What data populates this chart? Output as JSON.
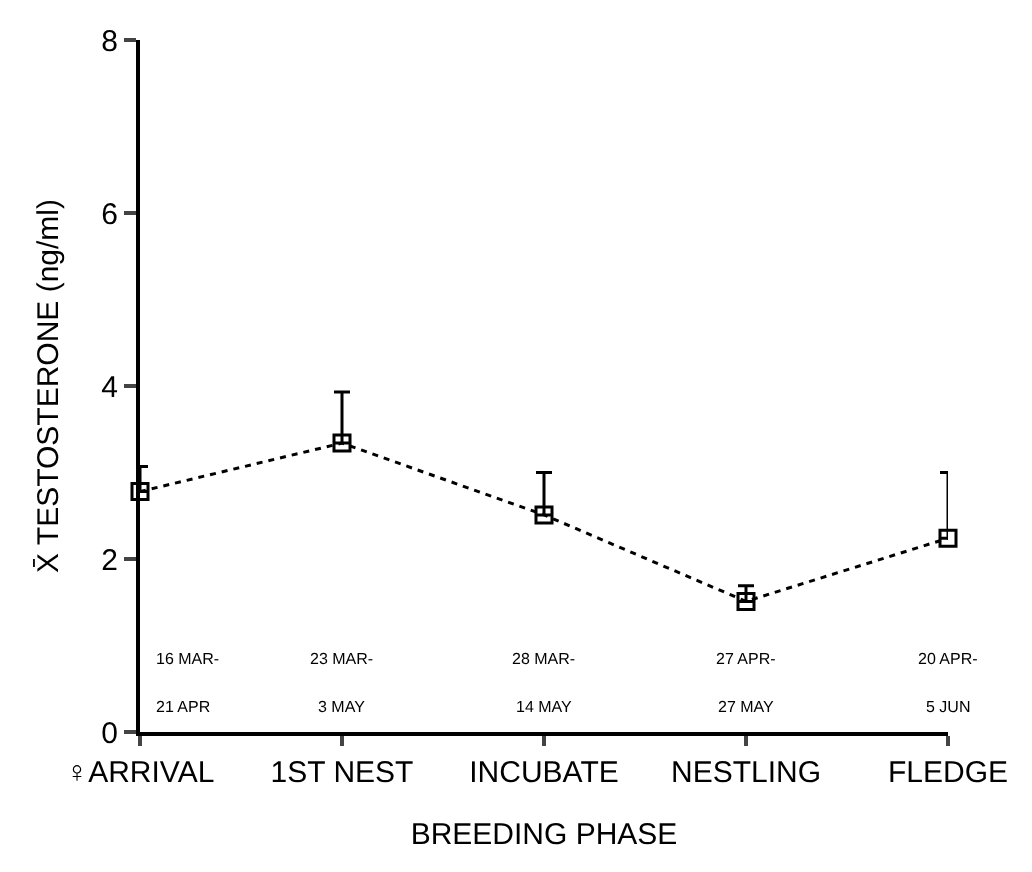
{
  "chart_data": {
    "type": "line",
    "xlabel": "BREEDING PHASE",
    "ylabel": "X̄ TESTOSTERONE (ng/ml)",
    "categories": [
      "♀ARRIVAL",
      "1ST NEST",
      "INCUBATE",
      "NESTLING",
      "FLEDGE"
    ],
    "series": [
      {
        "color": "#000000",
        "values": [
          2.78,
          3.34,
          2.51,
          1.51,
          2.24
        ],
        "errors": [
          [
            2.78,
            3.07
          ],
          [
            3.34,
            3.93
          ],
          [
            2.51,
            3.0
          ],
          [
            1.51,
            1.69
          ],
          [
            2.24,
            3.0
          ]
        ]
      }
    ],
    "ylim": [
      0,
      8
    ],
    "yticks": [
      0,
      2,
      4,
      6,
      8
    ],
    "grid": false,
    "marker": "square",
    "line_style": "dotted",
    "annotations": [
      "16 MAR-",
      "21 APR",
      "23 MAR-",
      "3 MAY",
      "28 MAR-",
      "14 MAY",
      "27 APR-",
      "27 MAY",
      "20 APR-",
      "5 JUN"
    ]
  }
}
